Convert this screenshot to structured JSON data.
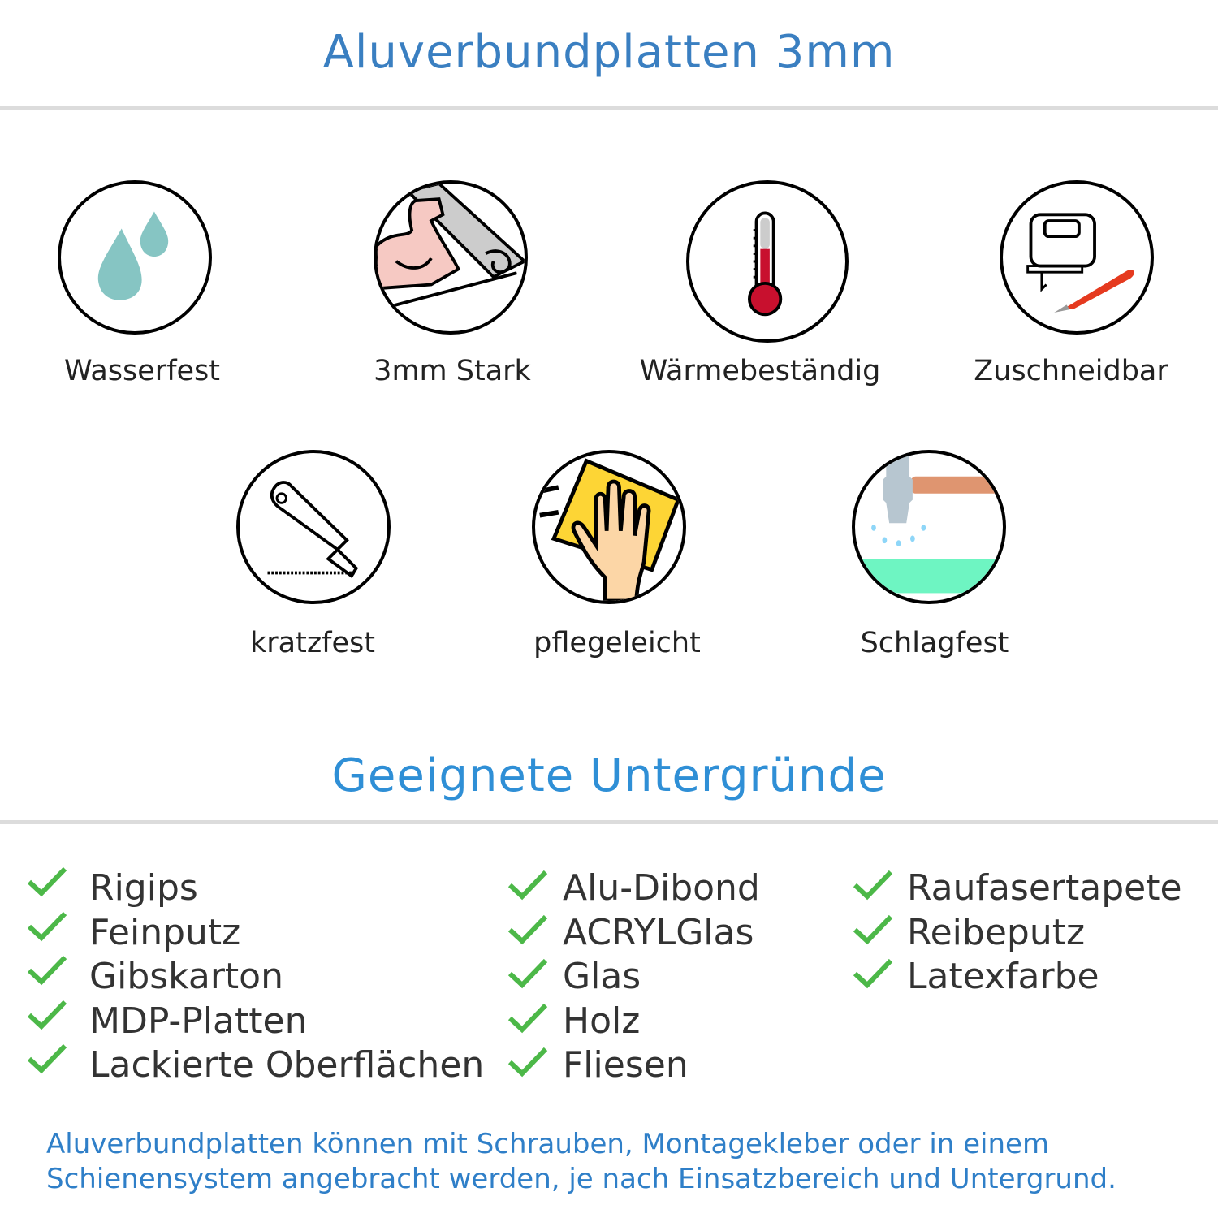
{
  "header": {
    "title": "Aluverbundplatten 3mm",
    "color": "#3a7fc1"
  },
  "features": [
    {
      "label": "Wasserfest",
      "icon": "water-drops-icon"
    },
    {
      "label": "3mm Stark",
      "icon": "strong-arm-icon"
    },
    {
      "label": "Wärmebeständig",
      "icon": "thermometer-icon"
    },
    {
      "label": "Zuschneidbar",
      "icon": "jigsaw-cutter-icon"
    },
    {
      "label": "kratzfest",
      "icon": "utility-knife-icon"
    },
    {
      "label": "pflegeleicht",
      "icon": "cleaning-hand-icon"
    },
    {
      "label": "Schlagfest",
      "icon": "hammer-icon"
    }
  ],
  "substrates": {
    "title": "Geeignete Untergründe",
    "title_color": "#2f8fd6",
    "check_color": "#4cb848",
    "columns": [
      [
        "Rigips",
        "Feinputz",
        "Gibskarton",
        "MDP-Platten",
        "Lackierte Oberflächen"
      ],
      [
        "Alu-Dibond",
        "ACRYLGlas",
        "Glas",
        "Holz",
        "Fliesen"
      ],
      [
        "Raufasertapete",
        "Reibeputz",
        "Latexfarbe"
      ]
    ]
  },
  "footer": {
    "line1": "Aluverbundplatten können mit Schrauben, Montagekleber oder in einem",
    "line2": "Schienensystem angebracht werden, je nach Einsatzbereich und Untergrund."
  }
}
